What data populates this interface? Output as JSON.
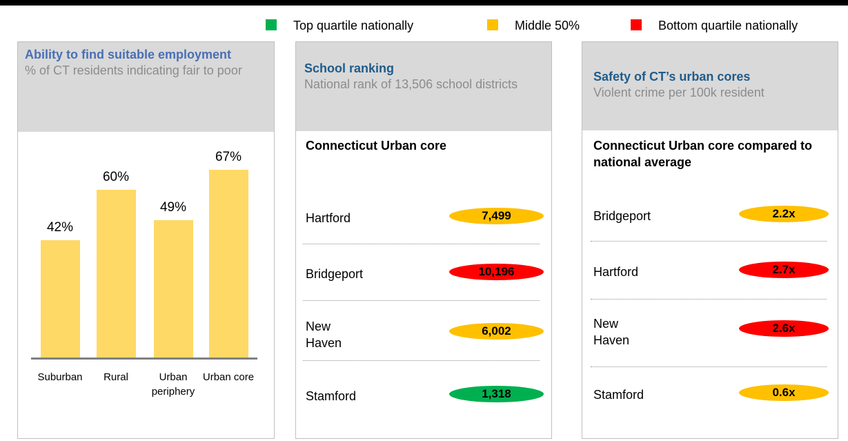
{
  "legend": [
    {
      "label": "Top quartile nationally",
      "color": "#00b050"
    },
    {
      "label": "Middle 50%",
      "color": "#ffc000"
    },
    {
      "label": "Bottom quartile nationally",
      "color": "#ff0000"
    }
  ],
  "chart_data": {
    "type": "bar",
    "title": "Ability to find suitable employment",
    "subtitle": "% of CT residents indicating fair to poor",
    "categories": [
      "Suburban",
      "Rural",
      "Urban periphery",
      "Urban core"
    ],
    "values": [
      42,
      60,
      49,
      67
    ],
    "value_labels": [
      "42%",
      "60%",
      "49%",
      "67%"
    ],
    "color": "#ffd966",
    "ylim": [
      0,
      80
    ]
  },
  "school": {
    "title": "School ranking",
    "subtitle": "National rank of 13,506 school districts",
    "header": "Connecticut Urban core",
    "rows": [
      {
        "name": "Hartford",
        "rank": "7,499",
        "color": "#ffc000"
      },
      {
        "name": "Bridgeport",
        "rank": "10,196",
        "color": "#ff0000"
      },
      {
        "name": "New Haven",
        "rank": "6,002",
        "color": "#ffc000"
      },
      {
        "name": "Stamford",
        "rank": "1,318",
        "color": "#00b050"
      }
    ]
  },
  "safety": {
    "title": "Safety of CT’s urban cores",
    "subtitle": "Violent crime per 100k resident",
    "header": "Connecticut Urban core compared to national average",
    "rows": [
      {
        "name": "Bridgeport",
        "ratio": "2.2x",
        "color": "#ffc000"
      },
      {
        "name": "Hartford",
        "ratio": "2.7x",
        "color": "#ff0000"
      },
      {
        "name": "New Haven",
        "ratio": "2.6x",
        "color": "#ff0000"
      },
      {
        "name": "Stamford",
        "ratio": "0.6x",
        "color": "#ffc000"
      }
    ]
  }
}
